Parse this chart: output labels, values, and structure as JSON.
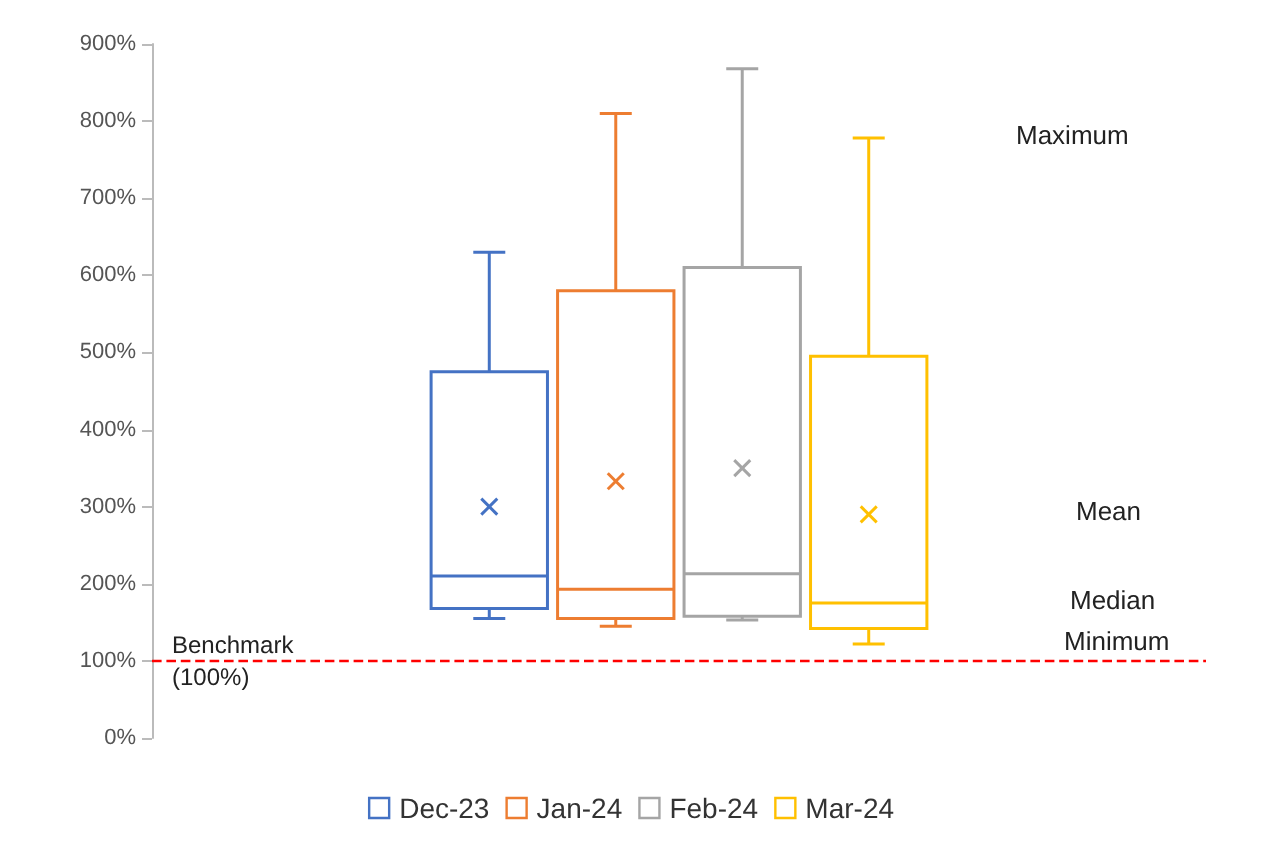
{
  "chart_data": {
    "type": "box",
    "categories": [
      null
    ],
    "series": [
      {
        "name": "Dec-23",
        "color": "#4472c4",
        "boxes": [
          {
            "low": 155,
            "q1": 168,
            "median": 210,
            "q3": 475,
            "high": 630,
            "mean": 300
          }
        ]
      },
      {
        "name": "Jan-24",
        "color": "#ed7d31",
        "boxes": [
          {
            "low": 145,
            "q1": 155,
            "median": 193,
            "q3": 580,
            "high": 810,
            "mean": 333
          }
        ]
      },
      {
        "name": "Feb-24",
        "color": "#a5a5a5",
        "boxes": [
          {
            "low": 153,
            "q1": 158,
            "median": 213,
            "q3": 610,
            "high": 868,
            "mean": 350
          }
        ]
      },
      {
        "name": "Mar-24",
        "color": "#ffc000",
        "boxes": [
          {
            "low": 122,
            "q1": 142,
            "median": 175,
            "q3": 495,
            "high": 778,
            "mean": 290
          }
        ]
      }
    ],
    "ylim": [
      0,
      900
    ],
    "yticks": [
      {
        "value": 0,
        "label": "0%"
      },
      {
        "value": 100,
        "label": "100%"
      },
      {
        "value": 200,
        "label": "200%"
      },
      {
        "value": 300,
        "label": "300%"
      },
      {
        "value": 400,
        "label": "400%"
      },
      {
        "value": 500,
        "label": "500%"
      },
      {
        "value": 600,
        "label": "600%"
      },
      {
        "value": 700,
        "label": "700%"
      },
      {
        "value": 800,
        "label": "800%"
      },
      {
        "value": 900,
        "label": "900%"
      }
    ],
    "ref_lines": [
      {
        "axis": "y",
        "value": 100,
        "label": "Benchmark\n(100%)",
        "color": "#ff0000",
        "line_style": "dashed"
      }
    ],
    "annotations": [
      "Maximum",
      "Mean",
      "Median",
      "Minimum"
    ],
    "grid": false,
    "legend": "bottom"
  }
}
